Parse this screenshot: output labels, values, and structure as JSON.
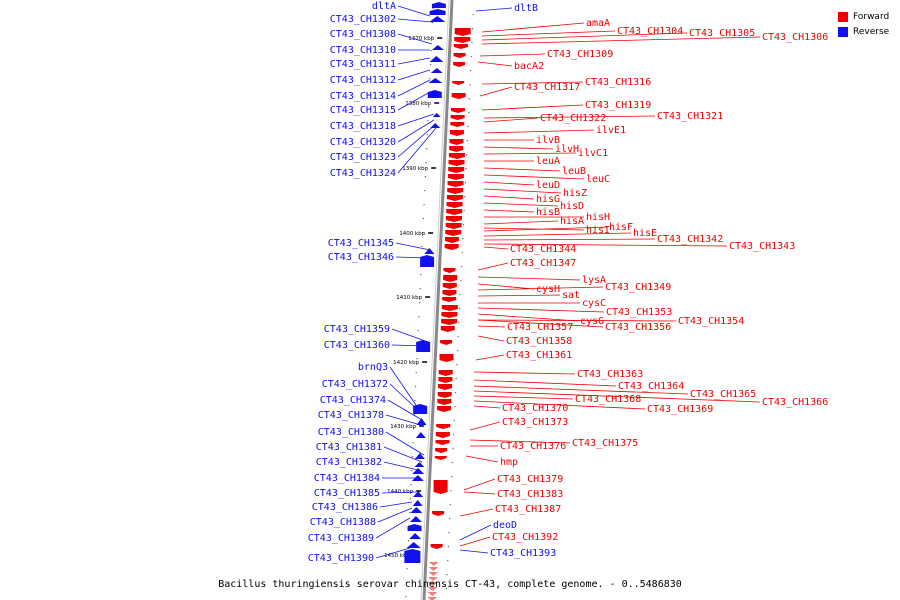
{
  "legend": {
    "forward": {
      "label": "Forward",
      "color": "#ee0000"
    },
    "reverse": {
      "label": "Reverse",
      "color": "#1111ee"
    }
  },
  "caption": "Bacillus thuringiensis serovar chinensis CT-43, complete genome. - 0..5486830",
  "scale_ticks": [
    "1370 kbp",
    "1380 kbp",
    "1390 kbp",
    "1400 kbp",
    "1410 kbp",
    "1420 kbp",
    "1430 kbp",
    "1440 kbp",
    "1450 kbp"
  ],
  "reverse_labels": [
    "dltA",
    "CT43_CH1302",
    "CT43_CH1308",
    "CT43_CH1310",
    "CT43_CH1311",
    "CT43_CH1312",
    "CT43_CH1314",
    "CT43_CH1315",
    "CT43_CH1318",
    "CT43_CH1320",
    "CT43_CH1323",
    "CT43_CH1324",
    "CT43_CH1345",
    "CT43_CH1346",
    "CT43_CH1359",
    "CT43_CH1360",
    "brnQ3",
    "CT43_CH1372",
    "CT43_CH1374",
    "CT43_CH1378",
    "CT43_CH1380",
    "CT43_CH1381",
    "CT43_CH1382",
    "CT43_CH1384",
    "CT43_CH1385",
    "CT43_CH1386",
    "CT43_CH1388",
    "CT43_CH1389",
    "CT43_CH1390",
    "dltB",
    "deoD",
    "CT43_CH1393"
  ],
  "forward_labels": [
    "amaA",
    "CT43_CH1304",
    "CT43_CH1305",
    "CT43_CH1306",
    "CT43_CH1309",
    "bacA2",
    "CT43_CH1316",
    "CT43_CH1317",
    "CT43_CH1319",
    "CT43_CH1321",
    "CT43_CH1322",
    "ilvE1",
    "ilvB",
    "ilvH",
    "ilvC1",
    "leuA",
    "leuB",
    "leuC",
    "leuD",
    "hisZ",
    "hisG",
    "hisD",
    "hisB",
    "hisH",
    "hisA",
    "hisF",
    "hisI",
    "hisE",
    "CT43_CH1342",
    "CT43_CH1343",
    "CT43_CH1344",
    "CT43_CH1347",
    "lysA",
    "cysH",
    "CT43_CH1349",
    "sat",
    "cysC",
    "CT43_CH1353",
    "cysG",
    "CT43_CH1354",
    "CT43_CH1356",
    "CT43_CH1357",
    "CT43_CH1358",
    "CT43_CH1361",
    "CT43_CH1363",
    "CT43_CH1364",
    "CT43_CH1365",
    "CT43_CH1366",
    "CT43_CH1368",
    "CT43_CH1369",
    "CT43_CH1370",
    "CT43_CH1373",
    "CT43_CH1375",
    "CT43_CH1376",
    "hmp",
    "CT43_CH1379",
    "CT43_CH1383",
    "CT43_CH1387",
    "CT43_CH1392"
  ]
}
